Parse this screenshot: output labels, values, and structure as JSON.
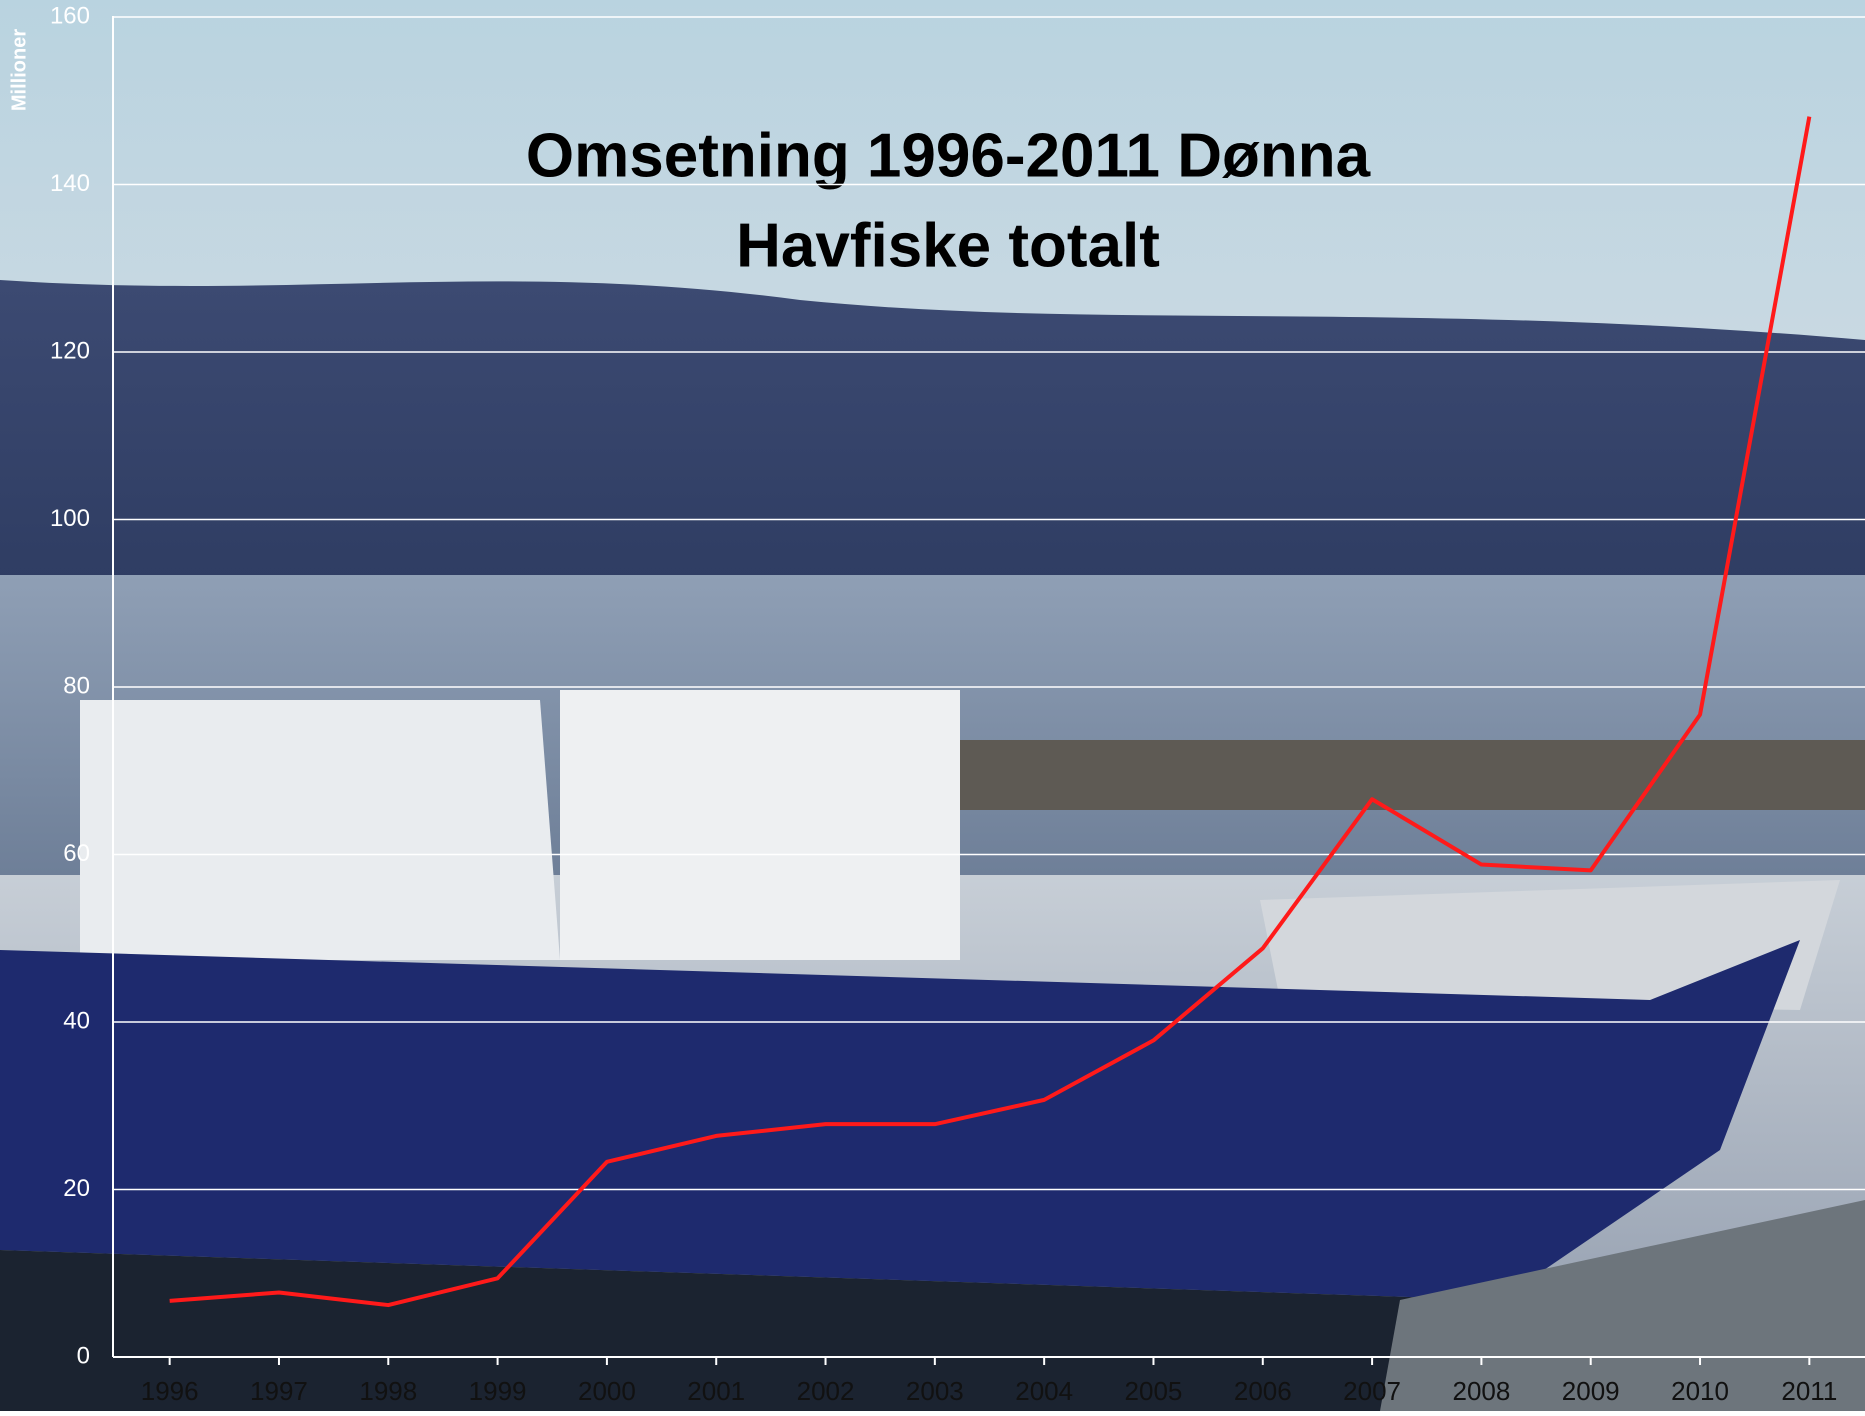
{
  "chart_data": {
    "type": "line",
    "title": "Omsetning 1996-2011 Dønna",
    "subtitle": "Havfiske totalt",
    "y_label": "Millioner",
    "categories": [
      "1996",
      "1997",
      "1998",
      "1999",
      "2000",
      "2001",
      "2002",
      "2003",
      "2004",
      "2005",
      "2006",
      "2007",
      "2008",
      "2009",
      "2010",
      "2011"
    ],
    "series": [
      {
        "color": "#ff1a1a",
        "values": [
          6.7,
          7.7,
          6.2,
          9.4,
          23.3,
          26.4,
          27.8,
          27.8,
          30.7,
          37.8,
          48.8,
          66.6,
          58.8,
          58.1,
          76.7,
          148.1
        ]
      }
    ],
    "ylim": [
      0,
      160
    ],
    "yticks": [
      0,
      20,
      40,
      60,
      80,
      100,
      120,
      140,
      160
    ],
    "grid": true
  }
}
